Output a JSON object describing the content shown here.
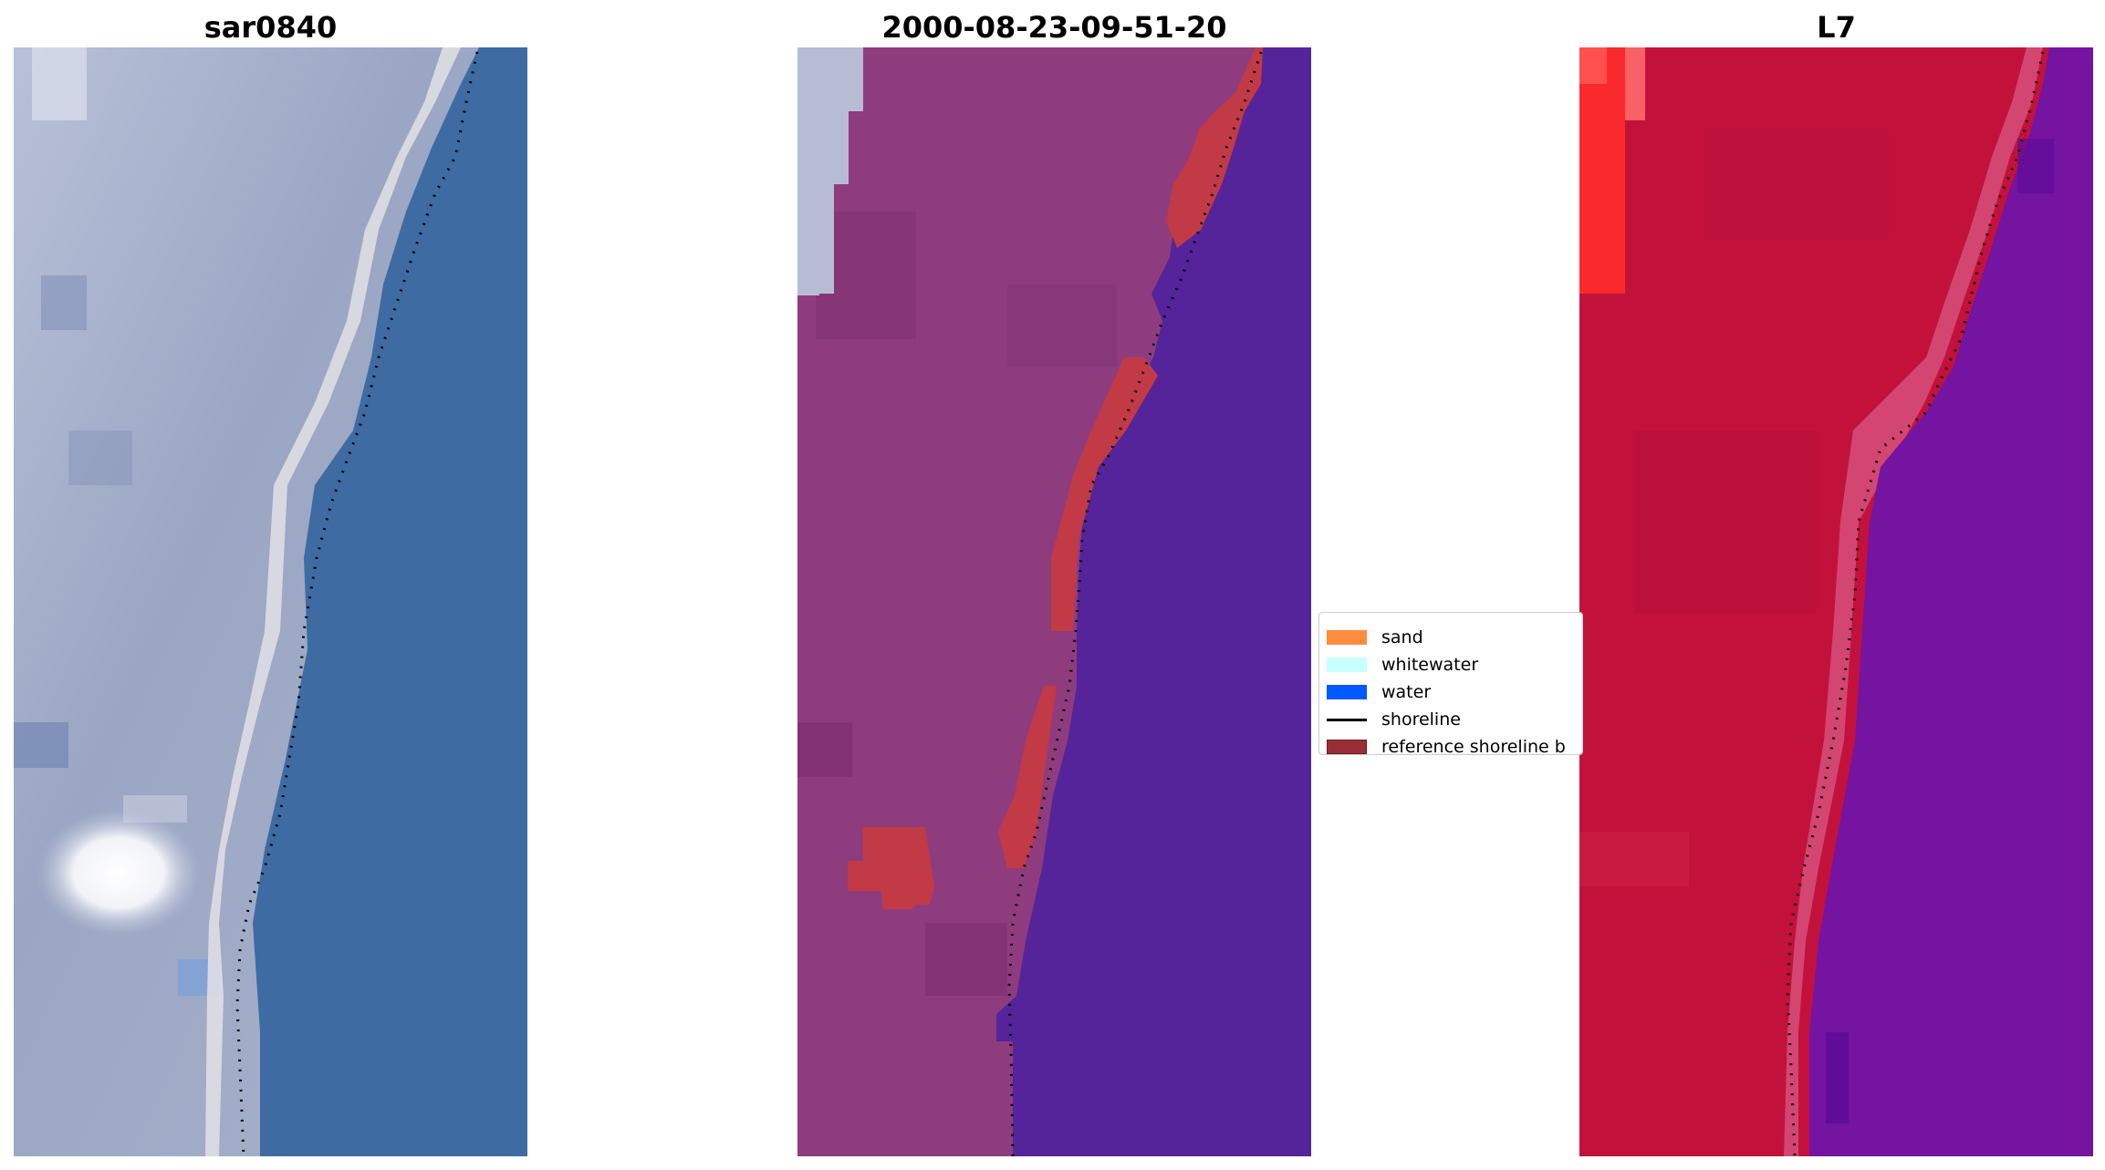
{
  "panels": [
    {
      "title": "sar0840"
    },
    {
      "title": "2000-08-23-09-51-20"
    },
    {
      "title": "L7"
    }
  ],
  "legend": {
    "items": [
      {
        "label": "sand",
        "color": "#ff8c3f"
      },
      {
        "label": "whitewater",
        "color": "#c8ffff"
      },
      {
        "label": "water",
        "color": "#0058ff"
      },
      {
        "label": "shoreline",
        "color": "#000000"
      },
      {
        "label": "reference shoreline b",
        "color": "#9b2e34"
      }
    ]
  },
  "colors": {
    "rgb_land": "#a3aec8",
    "rgb_water": "#3d6aa0",
    "class_land": "#8f3c7e",
    "class_water": "#55249a",
    "class_buffer": "#c23a45",
    "nir_land": "#c2123c",
    "nir_water": "#7514a0"
  }
}
